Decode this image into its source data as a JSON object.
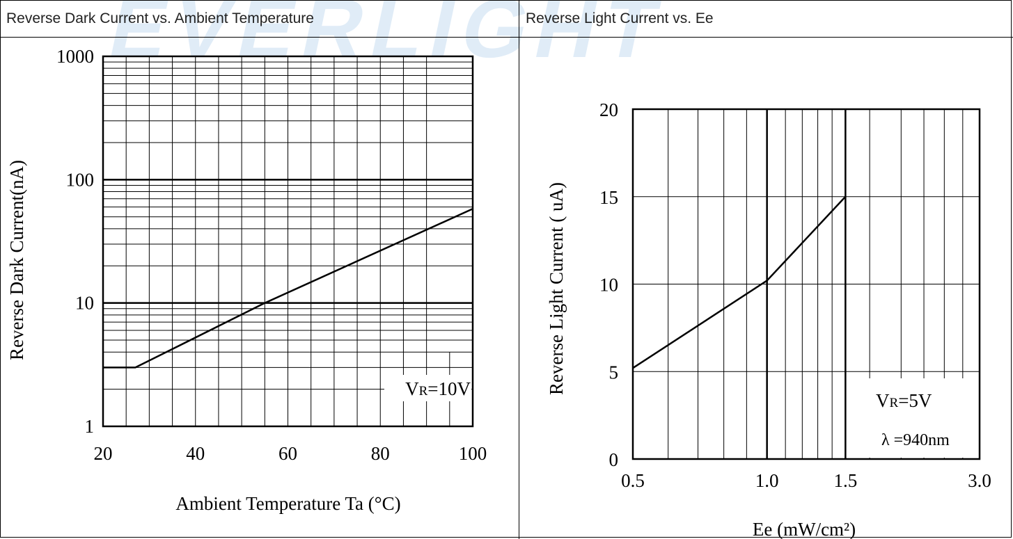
{
  "watermark": "EVERLIGHT",
  "headers": {
    "left": "Reverse Dark Current vs. Ambient Temperature",
    "right": "Reverse Light Current vs. Ee"
  },
  "chart_data": [
    {
      "type": "line",
      "title": "Reverse Dark Current vs. Ambient Temperature",
      "xlabel": "Ambient Temperature Ta (°C)",
      "ylabel": "Reverse Dark Current(nA)",
      "xlim": [
        20,
        100
      ],
      "ylim": [
        1,
        1000
      ],
      "yscale": "log",
      "xticks": [
        "20",
        "40",
        "60",
        "80",
        "100"
      ],
      "yticks": [
        "1",
        "10",
        "100",
        "1000"
      ],
      "grid": true,
      "annotation": {
        "main": "V",
        "sub": "R",
        "rest": "=10V"
      },
      "series": [
        {
          "x": [
            20,
            27,
            55,
            100
          ],
          "y": [
            3,
            3,
            10,
            58
          ]
        }
      ]
    },
    {
      "type": "line",
      "title": "Reverse Light Current vs. Ee",
      "xlabel": "Ee (mW/cm²)",
      "ylabel": "Reverse Light Current ( uA)",
      "xlim": [
        0.5,
        3.0
      ],
      "ylim": [
        0,
        20
      ],
      "xscale": "log",
      "xticks": [
        "0.5",
        "1.0",
        "1.5",
        "3.0"
      ],
      "yticks": [
        "0",
        "5",
        "10",
        "15",
        "20"
      ],
      "grid": true,
      "annotation": {
        "main": "V",
        "sub": "R",
        "rest": "=5V",
        "line2": "λ =940nm"
      },
      "series": [
        {
          "x": [
            0.5,
            1.0,
            1.5
          ],
          "y": [
            5.2,
            10.2,
            15.0
          ]
        }
      ]
    }
  ]
}
